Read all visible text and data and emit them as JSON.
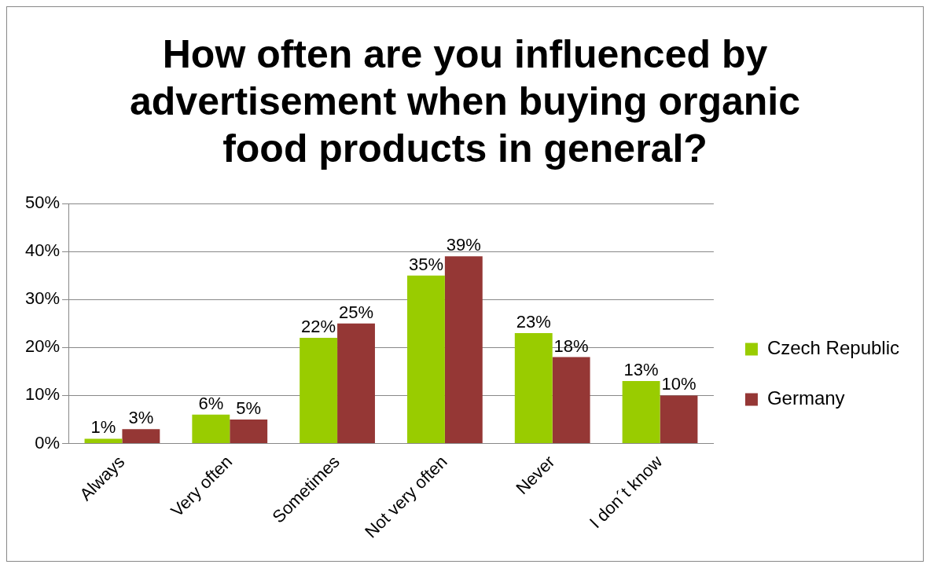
{
  "chart_data": {
    "type": "bar",
    "title": "How often are you influenced by advertisement when buying organic food products in general?",
    "categories": [
      "Always",
      "Very often",
      "Sometimes",
      "Not very often",
      "Never",
      "I don´t know"
    ],
    "series": [
      {
        "name": "Czech Republic",
        "color": "#99cc00",
        "values": [
          1,
          6,
          22,
          35,
          23,
          13
        ],
        "value_labels": [
          "1%",
          "6%",
          "22%",
          "35%",
          "23%",
          "13%"
        ]
      },
      {
        "name": "Germany",
        "color": "#953735",
        "values": [
          3,
          5,
          25,
          39,
          18,
          10
        ],
        "value_labels": [
          "3%",
          "5%",
          "25%",
          "39%",
          "18%",
          "10%"
        ]
      }
    ],
    "ylim": [
      0,
      50
    ],
    "yticks": [
      {
        "value": 0,
        "label": "0%"
      },
      {
        "value": 10,
        "label": "10%"
      },
      {
        "value": 20,
        "label": "20%"
      },
      {
        "value": 30,
        "label": "30%"
      },
      {
        "value": 40,
        "label": "40%"
      },
      {
        "value": 50,
        "label": "50%"
      }
    ],
    "grid": "y",
    "legend": "right"
  }
}
